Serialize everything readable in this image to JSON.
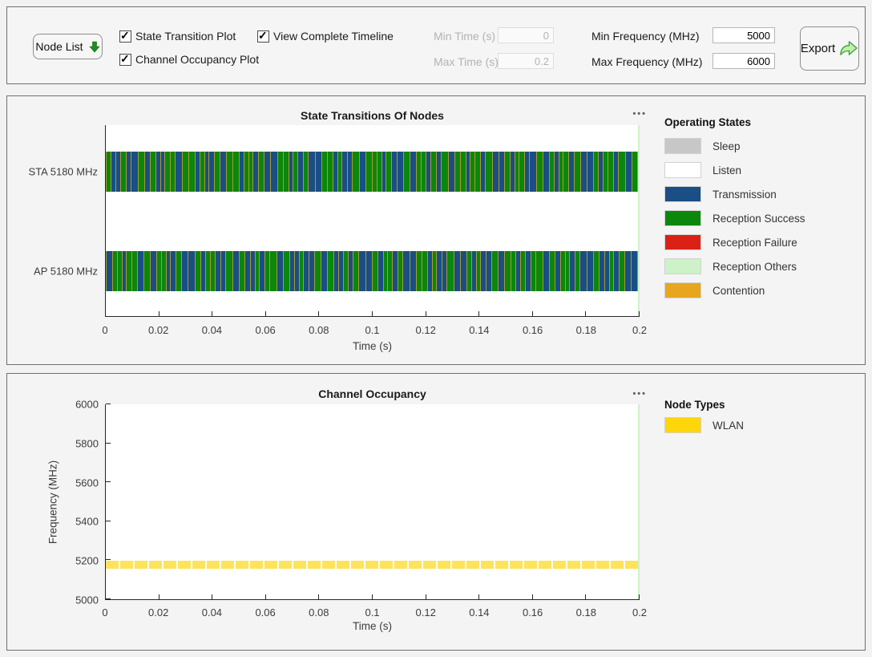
{
  "toolbar": {
    "node_list_label": "Node List",
    "checkboxes": [
      {
        "label": "State Transition Plot",
        "checked": true
      },
      {
        "label": "Channel Occupancy Plot",
        "checked": true
      },
      {
        "label": "View Complete Timeline",
        "checked": true
      }
    ],
    "fields": {
      "min_time": {
        "label": "Min Time (s)",
        "value": "0",
        "enabled": false
      },
      "max_time": {
        "label": "Max Time (s)",
        "value": "0.2",
        "enabled": false
      },
      "min_freq": {
        "label": "Min Frequency (MHz)",
        "value": "5000",
        "enabled": true
      },
      "max_freq": {
        "label": "Max Frequency (MHz)",
        "value": "6000",
        "enabled": true
      }
    },
    "export_label": "Export"
  },
  "colors": {
    "sleep": "#c7c7c7",
    "listen": "#ffffff",
    "transmission": "#1a4e85",
    "reception_success": "#0b870b",
    "reception_failure": "#da2116",
    "reception_others": "#cdf2c8",
    "contention": "#e8a51e",
    "wlan": "#ffd60a",
    "segment_separator": "#a89a38",
    "axes_right_edge": "#cdf2c8"
  },
  "state_plot": {
    "title": "State Transitions Of Nodes",
    "menu": "•••",
    "xlabel": "Time (s)",
    "x_ticks": [
      "0",
      "0.02",
      "0.04",
      "0.06",
      "0.08",
      "0.1",
      "0.12",
      "0.14",
      "0.16",
      "0.18",
      "0.2"
    ],
    "rows": [
      {
        "label": "STA 5180 MHz",
        "segments": "RTTRTTRTRTTRRTRRTRTTRTRRTRRTRTTRRTRTRTTRRTRTTRTRRRTRTTRTRRTRTRTRRTRRTRTTRTRRTTRTRTRRTRTTRTRRTRTR"
      },
      {
        "label": "AP 5180 MHz",
        "segments": "TRRTRRTRTRRTTRTTRTRRTTRTRTTRTRRTRTTRTTRTRTTRTRTTRTRRTRTTRRTRTTRTTRTRTTRTRRTRTRRTRTRRTRTTRTTRTRTT"
      }
    ],
    "legend": {
      "title": "Operating States",
      "items": [
        {
          "label": "Sleep",
          "color": "#c7c7c7"
        },
        {
          "label": "Listen",
          "color": "#ffffff"
        },
        {
          "label": "Transmission",
          "color": "#1a4e85"
        },
        {
          "label": "Reception Success",
          "color": "#0b870b"
        },
        {
          "label": "Reception Failure",
          "color": "#da2116"
        },
        {
          "label": "Reception Others",
          "color": "#cdf2c8"
        },
        {
          "label": "Contention",
          "color": "#e8a51e"
        }
      ]
    }
  },
  "occupancy_plot": {
    "title": "Channel Occupancy",
    "menu": "•••",
    "xlabel": "Time (s)",
    "ylabel": "Frequency (MHz)",
    "x_ticks": [
      "0",
      "0.02",
      "0.04",
      "0.06",
      "0.08",
      "0.1",
      "0.12",
      "0.14",
      "0.16",
      "0.18",
      "0.2"
    ],
    "y_ticks": [
      "6000",
      "5800",
      "5600",
      "5400",
      "5200",
      "5000"
    ],
    "ylim": [
      5000,
      6000
    ],
    "band": {
      "label": "WLAN",
      "center_mhz": 5180,
      "height_mhz": 40,
      "color": "#ffd60a"
    },
    "legend": {
      "title": "Node Types",
      "items": [
        {
          "label": "WLAN",
          "color": "#ffd60a"
        }
      ]
    }
  },
  "chart_data": [
    {
      "type": "timeline",
      "title": "State Transitions Of Nodes",
      "xlabel": "Time (s)",
      "xlim": [
        0,
        0.2
      ],
      "categories": [
        "STA 5180 MHz",
        "AP 5180 MHz"
      ],
      "states": [
        "Sleep",
        "Listen",
        "Transmission",
        "Reception Success",
        "Reception Failure",
        "Reception Others",
        "Contention"
      ],
      "summary": "Both nodes show continuous alternating Transmission (blue) and Reception Success (green) segments separated by thin Contention slivers over the full 0 to 0.2 s span.",
      "legend_position": "right"
    },
    {
      "type": "area",
      "title": "Channel Occupancy",
      "xlabel": "Time (s)",
      "ylabel": "Frequency (MHz)",
      "xlim": [
        0,
        0.2
      ],
      "ylim": [
        5000,
        6000
      ],
      "series": [
        {
          "name": "WLAN",
          "frequency_mhz": 5180,
          "occupied_from_s": 0,
          "occupied_to_s": 0.2
        }
      ],
      "legend_position": "right"
    }
  ]
}
